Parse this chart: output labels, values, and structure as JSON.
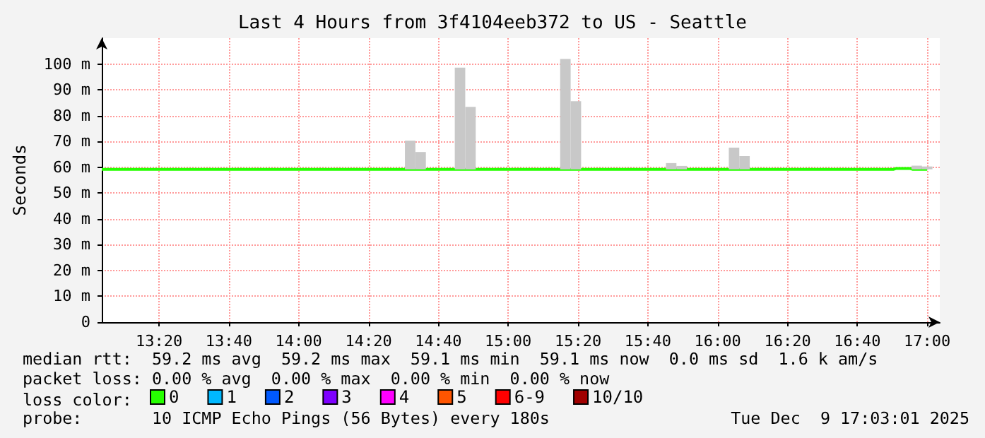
{
  "chart_data": {
    "type": "line",
    "title": "Last 4 Hours from 3f4104eeb372 to US - Seattle",
    "ylabel": "Seconds",
    "legend_title": "loss color:",
    "xlim": [
      13.06,
      17.06
    ],
    "xticks": [
      {
        "value": 13.3333,
        "label": "13:20"
      },
      {
        "value": 13.6667,
        "label": "13:40"
      },
      {
        "value": 14,
        "label": "14:00"
      },
      {
        "value": 14.3333,
        "label": "14:20"
      },
      {
        "value": 14.6667,
        "label": "14:40"
      },
      {
        "value": 15,
        "label": "15:00"
      },
      {
        "value": 15.3333,
        "label": "15:20"
      },
      {
        "value": 15.6667,
        "label": "15:40"
      },
      {
        "value": 16,
        "label": "16:00"
      },
      {
        "value": 16.3333,
        "label": "16:20"
      },
      {
        "value": 16.6667,
        "label": "16:40"
      },
      {
        "value": 17,
        "label": "17:00"
      }
    ],
    "ylim": [
      0,
      110
    ],
    "yticks": [
      0,
      {
        "value": 10,
        "label": "10 m"
      },
      {
        "value": 20,
        "label": "20 m"
      },
      {
        "value": 30,
        "label": "30 m"
      },
      {
        "value": 40,
        "label": "40 m"
      },
      {
        "value": 50,
        "label": "50 m"
      },
      {
        "value": 60,
        "label": "60 m"
      },
      {
        "value": 70,
        "label": "70 m"
      },
      {
        "value": 80,
        "label": "80 m"
      },
      {
        "value": 90,
        "label": "90 m"
      },
      {
        "value": 100,
        "label": "100 m"
      }
    ],
    "grid": true,
    "legend": "bottom",
    "marker": "none",
    "line_style": "solid",
    "series": [
      {
        "type": "bar",
        "color": "#c8c8c8",
        "x": [
          14.532,
          14.582,
          14.77,
          14.82,
          15.273,
          15.323,
          15.778,
          15.828,
          16.078,
          16.128,
          16.95,
          17.0
        ],
        "base": [
          59.2,
          59.2,
          59.2,
          59.2,
          59.2,
          59.2,
          59.2,
          59.2,
          59.2,
          59.2,
          59.2,
          59.2
        ],
        "values": [
          11.1,
          6.7,
          39.4,
          24.2,
          42.7,
          26.4,
          2.4,
          1.3,
          8.4,
          5.1,
          1.4,
          1.1
        ]
      },
      {
        "name": "0",
        "color": "#26ff00",
        "x": [
          13.06,
          16.84,
          16.85,
          16.92,
          16.93,
          17.0
        ],
        "values": [
          59.2,
          59.2,
          59.5,
          59.5,
          59.2,
          59.2
        ]
      },
      {
        "name": "1",
        "color": "#00b8ff"
      },
      {
        "name": "2",
        "color": "#0059ff"
      },
      {
        "name": "3",
        "color": "#7e00ff"
      },
      {
        "name": "4",
        "color": "#ff00ff"
      },
      {
        "name": "5",
        "color": "#ff5500"
      },
      {
        "name": "6-9",
        "color": "#ff0000"
      },
      {
        "name": "10/10",
        "color": "#a10000"
      }
    ],
    "annotations": [
      "median rtt:  59.2 ms avg  59.2 ms max  59.1 ms min  59.1 ms now  0.0 ms sd  1.6 k am/s",
      "packet loss: 0.00 % avg  0.00 % max  0.00 % min  0.00 % now",
      "probe:       10 ICMP Echo Pings (56 Bytes) every 180s",
      "Tue Dec  9 17:03:01 2025"
    ]
  }
}
